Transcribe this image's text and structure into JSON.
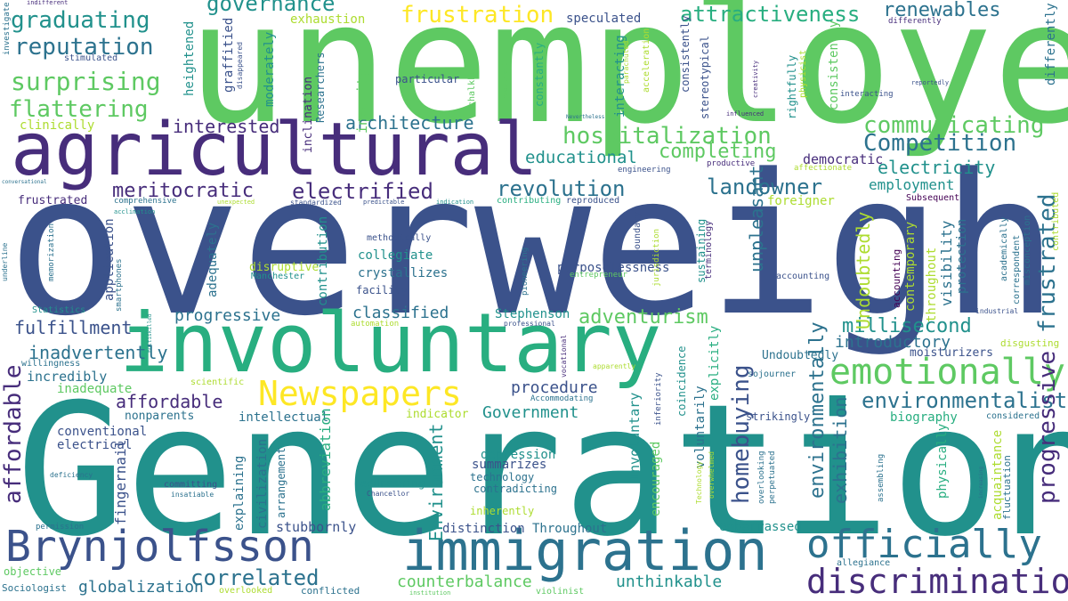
{
  "palette": {
    "background": "#ffffff",
    "green": "#5ec962",
    "lime": "#addc30",
    "yellow": "#fde725",
    "teal": "#21918c",
    "tealgreen": "#28ae80",
    "blue": "#3b528b",
    "steel": "#2c728e",
    "purple": "#472d7b",
    "dark": "#440154"
  },
  "words": [
    "unemployed",
    "overweight",
    "Generation",
    "agricultural",
    "involuntary",
    "immigration",
    "Brynjolfsson",
    "Newspapers",
    "officially",
    "discrimination",
    "emotionally",
    "governance",
    "graduating",
    "reputation",
    "surprising",
    "flattering",
    "clinically",
    "interested",
    "architecture",
    "frustration",
    "exhaustion",
    "speculated",
    "attractiveness",
    "renewables",
    "hospitalization",
    "communicating",
    "Competition",
    "educational",
    "completing",
    "meritocratic",
    "electrified",
    "revolution",
    "landowner",
    "electricity",
    "employment",
    "democratic",
    "foreigner",
    "frustrated",
    "adventurism",
    "millisecond",
    "introductory",
    "environmentalist",
    "classified",
    "progressive",
    "fulfillment",
    "inadvertently",
    "incredibly",
    "inadequate",
    "affordable",
    "nonparents",
    "intellectual",
    "procedure",
    "Government",
    "conventional",
    "electrical",
    "Environment",
    "depression",
    "summarizes",
    "technology",
    "contradicting",
    "stubbornly",
    "distinction",
    "Throughout",
    "embarrassed",
    "correlated",
    "counterbalance",
    "unthinkable",
    "globalization",
    "homebuying",
    "environmentally",
    "exhibition",
    "unpleasant",
    "Undoubtedly",
    "moisturizers",
    "biography",
    "considered",
    "abbreviation",
    "explaining",
    "civilization",
    "fingernail",
    "Stephenson",
    "purposelessness",
    "crystallizes",
    "collegiate",
    "disruptive",
    "methodically",
    "facility",
    "inherently",
    "addressing",
    "encouraged",
    "Involuntary",
    "voluntarily",
    "explicitly",
    "visibility",
    "protection",
    "acquaintance",
    "physically",
    "fluctuation",
    "Stereotypes",
    "instituted",
    "unbearable",
    "importation",
    "vocabulary",
    "investigate",
    "indifferent",
    "stimulated",
    "heightened",
    "graffitied",
    "disappeared",
    "moderately",
    "Researchers",
    "inclination",
    "inequity",
    "particular",
    "chalkboard",
    "investment",
    "constantly",
    "parachuted",
    "acceleration",
    "interacting",
    "consistently",
    "stereotypical",
    "rightfully",
    "physicist",
    "differently",
    "reportedly",
    "influenced",
    "creativity",
    "Nevertheless",
    "restructure",
    "engineering",
    "productive",
    "affectionate",
    "Subsequent",
    "contributed",
    "conversational",
    "comprehensive",
    "acclimation",
    "unexpected",
    "standardized",
    "predictable",
    "indication",
    "contributing",
    "reproduced",
    "underline",
    "memorization",
    "application",
    "smartphones",
    "adequately",
    "contribution",
    "adjustment",
    "Manchester",
    "pioneering",
    "jurisdiction",
    "boundary",
    "sustaining",
    "terminology",
    "entrepreneur",
    "accounting",
    "contemporary",
    "throughout",
    "correspondent",
    "misconception",
    "academically",
    "evaporated",
    "industrial",
    "Statistics",
    "willingness",
    "multiskilled",
    "automation",
    "professional",
    "vocational",
    "apparently",
    "scientific",
    "inferiority",
    "coincidence",
    "Accommodating",
    "indicator",
    "sojourner",
    "strikingly",
    "disgusting",
    "deficiency",
    "committing",
    "insatiable",
    "arrangement",
    "Chancellor",
    "Technology",
    "overwhelmed",
    "overlooking",
    "perpetuated",
    "assembling",
    "increasing",
    "permission",
    "objective",
    "Sociologist",
    "overlooked",
    "conflicted",
    "institution",
    "violinist",
    "allegiance",
    "manipulated"
  ]
}
